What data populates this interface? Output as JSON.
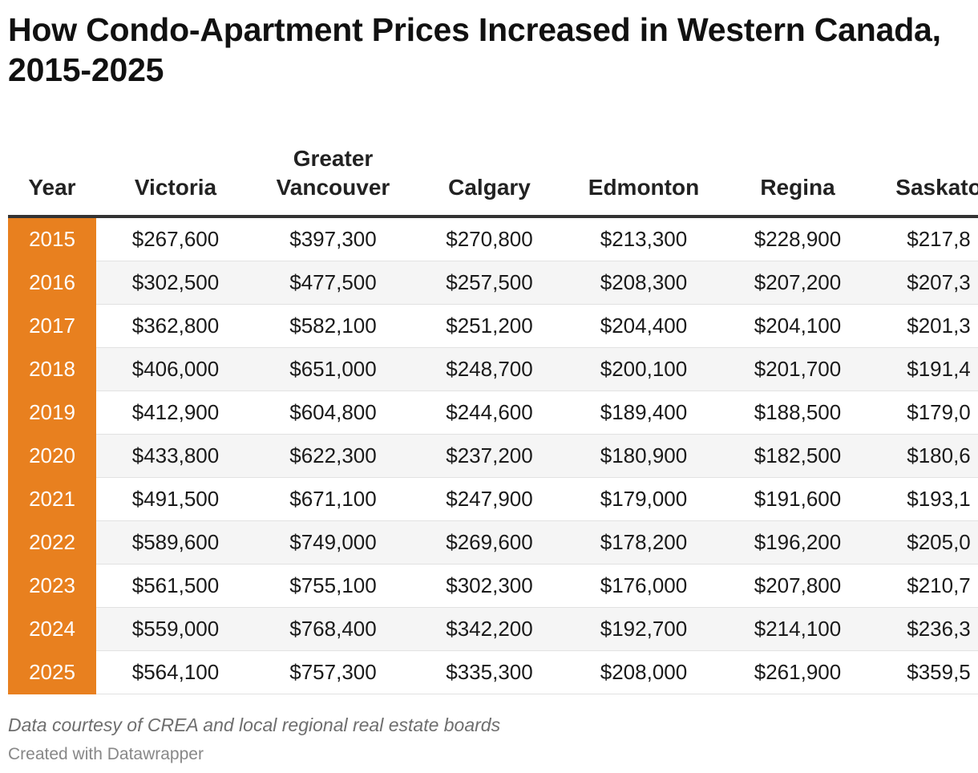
{
  "title": "How Condo-Apartment Prices Increased in Western Canada, 2015-2025",
  "chart_data": {
    "type": "table",
    "title": "How Condo-Apartment Prices Increased in Western Canada, 2015-2025",
    "columns": [
      "Year",
      "Victoria",
      "Greater Vancouver",
      "Calgary",
      "Edmonton",
      "Regina",
      "Saskato"
    ],
    "rows": [
      [
        "2015",
        "$267,600",
        "$397,300",
        "$270,800",
        "$213,300",
        "$228,900",
        "$217,8"
      ],
      [
        "2016",
        "$302,500",
        "$477,500",
        "$257,500",
        "$208,300",
        "$207,200",
        "$207,3"
      ],
      [
        "2017",
        "$362,800",
        "$582,100",
        "$251,200",
        "$204,400",
        "$204,100",
        "$201,3"
      ],
      [
        "2018",
        "$406,000",
        "$651,000",
        "$248,700",
        "$200,100",
        "$201,700",
        "$191,4"
      ],
      [
        "2019",
        "$412,900",
        "$604,800",
        "$244,600",
        "$189,400",
        "$188,500",
        "$179,0"
      ],
      [
        "2020",
        "$433,800",
        "$622,300",
        "$237,200",
        "$180,900",
        "$182,500",
        "$180,6"
      ],
      [
        "2021",
        "$491,500",
        "$671,100",
        "$247,900",
        "$179,000",
        "$191,600",
        "$193,1"
      ],
      [
        "2022",
        "$589,600",
        "$749,000",
        "$269,600",
        "$178,200",
        "$196,200",
        "$205,0"
      ],
      [
        "2023",
        "$561,500",
        "$755,100",
        "$302,300",
        "$176,000",
        "$207,800",
        "$210,7"
      ],
      [
        "2024",
        "$559,000",
        "$768,400",
        "$342,200",
        "$192,700",
        "$214,100",
        "$236,3"
      ],
      [
        "2025",
        "$564,100",
        "$757,300",
        "$335,300",
        "$208,000",
        "$261,900",
        "$359,5"
      ]
    ],
    "colors": {
      "year_column": "#e8801f",
      "header_rule": "#333333",
      "row_stripe": "#f5f5f5"
    }
  },
  "notes": "Data courtesy of CREA and local regional real estate boards",
  "credit": "Created with Datawrapper"
}
